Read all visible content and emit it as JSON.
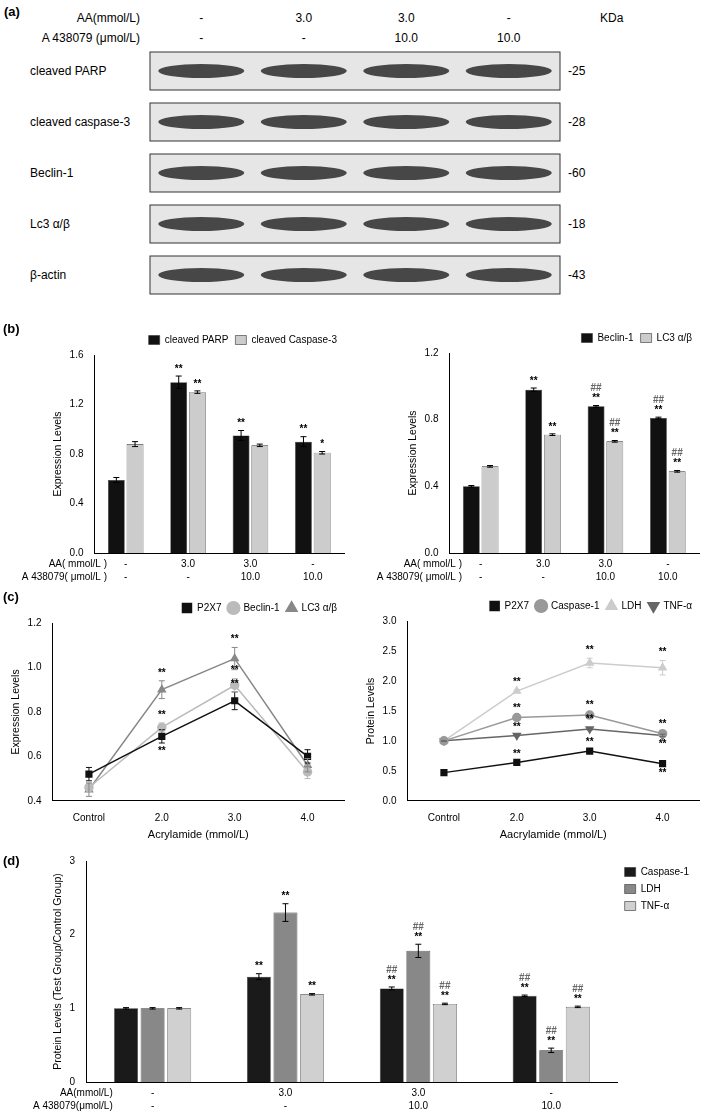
{
  "blot": {
    "panel": "(a)",
    "header": [
      {
        "label": "AA(mmol/L)",
        "values": [
          "-",
          "3.0",
          "3.0",
          "-"
        ]
      },
      {
        "label": "A 438079 (μmol/L)",
        "values": [
          "-",
          "-",
          "10.0",
          "10.0"
        ]
      }
    ],
    "size_unit": "KDa",
    "rows": [
      {
        "name": "cleaved PARP",
        "size": "-25"
      },
      {
        "name": "cleaved caspase-3",
        "size": "-28"
      },
      {
        "name": "Beclin-1",
        "size": "-60"
      },
      {
        "name": "Lc3 α/β",
        "size": "-18"
      },
      {
        "name": "β-actin",
        "size": "-43"
      }
    ]
  },
  "chart_data": [
    {
      "type": "bar",
      "panel": "(b)",
      "categories": [
        [
          "-",
          "-"
        ],
        [
          "3.0",
          "-"
        ],
        [
          "3.0",
          "10.0"
        ],
        [
          "-",
          "10.0"
        ]
      ],
      "category_row_labels": [
        "AA( mmol/L )",
        "A 438079( μmol/L )"
      ],
      "y_label": "Expression Levels",
      "ylim": [
        0,
        1.6
      ],
      "yticks": [
        {
          "value": 0,
          "label": "0.0"
        },
        0.4,
        0.8,
        1.2,
        1.6
      ],
      "grid": false,
      "legend": "top-right",
      "series": [
        {
          "name": "cleaved PARP",
          "color": "#111111",
          "values": [
            0.59,
            1.38,
            0.95,
            0.9
          ],
          "errors": [
            0.02,
            0.05,
            0.04,
            0.04
          ],
          "annotations": [
            null,
            "**",
            "**",
            "**"
          ]
        },
        {
          "name": "cleaved Caspase-3",
          "color": "#cccccc",
          "values": [
            0.88,
            1.3,
            0.87,
            0.81
          ],
          "errors": [
            0.02,
            0.01,
            0.01,
            0.01
          ],
          "annotations": [
            null,
            "**",
            null,
            "*"
          ]
        }
      ]
    },
    {
      "type": "bar",
      "categories": [
        [
          "-",
          "-"
        ],
        [
          "3.0",
          "-"
        ],
        [
          "3.0",
          "10.0"
        ],
        [
          "-",
          "10.0"
        ]
      ],
      "category_row_labels": [
        "AA( mmol/L )",
        "A 438079( μmol/L )"
      ],
      "y_label": "Expression Levels",
      "ylim": [
        0,
        1.2
      ],
      "yticks": [
        {
          "value": 0,
          "label": "0.0"
        },
        0.4,
        0.8,
        1.2
      ],
      "grid": false,
      "legend": "top-right",
      "series": [
        {
          "name": "Beclin-1",
          "color": "#111111",
          "values": [
            0.4,
            0.98,
            0.88,
            0.81
          ],
          "errors": [
            0.005,
            0.01,
            0.005,
            0.005
          ],
          "annotations": [
            null,
            "**",
            [
              "##",
              "**"
            ],
            [
              "##",
              "**"
            ]
          ]
        },
        {
          "name": "LC3 α/β",
          "color": "#cccccc",
          "values": [
            0.52,
            0.71,
            0.67,
            0.49
          ],
          "errors": [
            0.005,
            0.005,
            0.005,
            0.005
          ],
          "annotations": [
            null,
            "**",
            [
              "##",
              "**"
            ],
            [
              "##",
              "**"
            ]
          ]
        }
      ]
    },
    {
      "type": "line",
      "panel": "(c)",
      "categories": [
        "Control",
        "2.0",
        "3.0",
        "4.0"
      ],
      "x_label": "Acrylamide (mmol/L)",
      "y_label": "Expression Levels",
      "ylim": [
        0.4,
        1.2
      ],
      "yticks": [
        0.4,
        0.6,
        0.8,
        {
          "value": 1,
          "label": "1.0"
        },
        1.2
      ],
      "grid": false,
      "legend": "top-right",
      "series": [
        {
          "name": "P2X7",
          "color": "#111111",
          "marker": "square",
          "values": [
            0.52,
            0.69,
            0.85,
            0.6
          ],
          "errors": [
            0.03,
            0.03,
            0.04,
            0.03
          ],
          "annotations": [
            null,
            "**",
            "**",
            null
          ]
        },
        {
          "name": "Beclin-1",
          "color": "#bbbbbb",
          "marker": "circle",
          "values": [
            0.46,
            0.73,
            0.92,
            0.53
          ],
          "errors": [
            0.02,
            0.02,
            0.03,
            0.03
          ],
          "annotations": [
            null,
            "**",
            "**",
            null
          ]
        },
        {
          "name": "LC3 α/β",
          "color": "#888888",
          "marker": "triangle",
          "values": [
            0.45,
            0.9,
            1.04,
            0.56
          ],
          "errors": [
            0.03,
            0.04,
            0.05,
            0.03
          ],
          "annotations": [
            null,
            "**",
            "**",
            null
          ]
        }
      ]
    },
    {
      "type": "line",
      "categories": [
        "Control",
        "2.0",
        "3.0",
        "4.0"
      ],
      "x_label": "Aacrylamide (mmol/L)",
      "y_label": "Protein Levels",
      "ylim": [
        0,
        3
      ],
      "yticks": [
        {
          "value": 0,
          "label": "0.0"
        },
        0.5,
        {
          "value": 1,
          "label": "1.0"
        },
        1.5,
        {
          "value": 2,
          "label": "2.0"
        },
        2.5,
        {
          "value": 3,
          "label": "3.0"
        }
      ],
      "grid": false,
      "legend": "top-right",
      "series": [
        {
          "name": "P2X7",
          "color": "#111111",
          "marker": "square",
          "values": [
            0.47,
            0.64,
            0.83,
            0.62
          ],
          "errors": [
            0.01,
            0.01,
            0.02,
            0.02
          ],
          "annotations": [
            null,
            "**",
            "**",
            "**"
          ]
        },
        {
          "name": "Caspase-1",
          "color": "#999999",
          "marker": "circle",
          "values": [
            1.0,
            1.39,
            1.43,
            1.12
          ],
          "errors": [
            0.01,
            0.02,
            0.03,
            0.02
          ],
          "annotations": [
            null,
            "**",
            "**",
            "**"
          ]
        },
        {
          "name": "LDH",
          "color": "#cccccc",
          "marker": "triangle",
          "values": [
            1.0,
            1.83,
            2.3,
            2.22
          ],
          "errors": [
            0.01,
            0.02,
            0.08,
            0.12
          ],
          "annotations": [
            null,
            "**",
            "**",
            "**"
          ]
        },
        {
          "name": "TNF-α",
          "color": "#666666",
          "marker": "triangle-down",
          "values": [
            1.0,
            1.09,
            1.2,
            1.09
          ],
          "errors": [
            0.01,
            0.01,
            0.02,
            0.02
          ],
          "annotations": [
            null,
            "**",
            "**",
            "**"
          ]
        }
      ]
    },
    {
      "type": "bar",
      "panel": "(d)",
      "categories": [
        [
          "-",
          "-"
        ],
        [
          "3.0",
          "-"
        ],
        [
          "3.0",
          "10.0"
        ],
        [
          "-",
          "10.0"
        ]
      ],
      "category_row_labels": [
        "AA(mmol/L)",
        "A 438079(μmol/L)"
      ],
      "y_label": "Protein Levels (Test Group/Control Group)",
      "ylim": [
        0,
        3
      ],
      "yticks": [
        0,
        1,
        2,
        3
      ],
      "grid": false,
      "legend": "top-right",
      "series": [
        {
          "name": "Caspase-1",
          "color": "#1a1a1a",
          "values": [
            1.0,
            1.43,
            1.27,
            1.17
          ],
          "errors": [
            0.01,
            0.04,
            0.02,
            0.01
          ],
          "annotations": [
            null,
            "**",
            [
              "##",
              "**"
            ],
            [
              "##",
              "**"
            ]
          ]
        },
        {
          "name": "LDH",
          "color": "#888888",
          "values": [
            1.0,
            2.3,
            1.78,
            0.43
          ],
          "errors": [
            0.01,
            0.12,
            0.09,
            0.03
          ],
          "annotations": [
            null,
            "**",
            [
              "##",
              "**"
            ],
            [
              "##",
              "**"
            ]
          ]
        },
        {
          "name": "TNF-α",
          "color": "#d0d0d0",
          "values": [
            1.0,
            1.19,
            1.06,
            1.02
          ],
          "errors": [
            0.01,
            0.01,
            0.01,
            0.01
          ],
          "annotations": [
            null,
            "**",
            [
              "##",
              "**"
            ],
            [
              "##",
              "**"
            ]
          ]
        }
      ]
    }
  ]
}
